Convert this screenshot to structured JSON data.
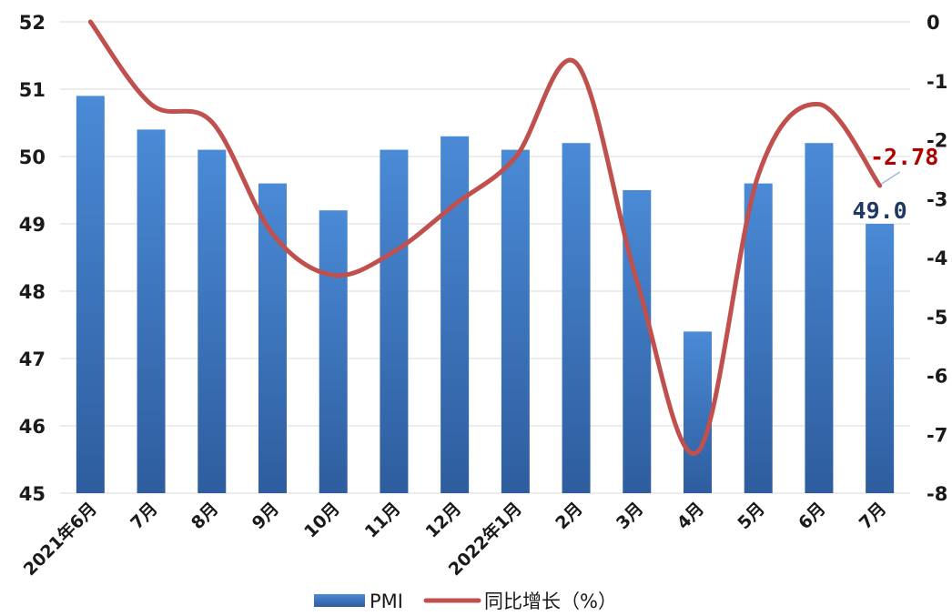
{
  "chart_data": {
    "type": "bar",
    "categories": [
      "2021年6月",
      "7月",
      "8月",
      "9月",
      "10月",
      "11月",
      "12月",
      "2022年1月",
      "2月",
      "3月",
      "4月",
      "5月",
      "6月",
      "7月"
    ],
    "series": [
      {
        "name": "PMI",
        "type": "bar",
        "axis": "left",
        "values": [
          50.9,
          50.4,
          50.1,
          49.6,
          49.2,
          50.1,
          50.3,
          50.1,
          50.2,
          49.5,
          47.4,
          49.6,
          50.2,
          49.0
        ],
        "color": "#3a78c3"
      },
      {
        "name": "同比增长（%）",
        "type": "line",
        "axis": "right",
        "values": [
          0,
          -1.4,
          -1.7,
          -3.6,
          -4.3,
          -3.9,
          -3.1,
          -2.3,
          -0.7,
          -4.4,
          -7.3,
          -2.6,
          -1.4,
          -2.78
        ],
        "color": "#c0504d"
      }
    ],
    "left_axis": {
      "ylim": [
        45,
        52
      ],
      "ticks": [
        "45",
        "46",
        "47",
        "48",
        "49",
        "50",
        "51",
        "52"
      ]
    },
    "right_axis": {
      "ylim": [
        -8,
        0
      ],
      "ticks": [
        "-8",
        "-7",
        "-6",
        "-5",
        "-4",
        "-3",
        "-2",
        "-1",
        "0"
      ]
    },
    "grid": true,
    "legend": "bottom",
    "annotations": {
      "line_last": {
        "text": "-2.78",
        "color": "#b00000"
      },
      "bar_last": {
        "text": "49.0",
        "color": "#1f3864"
      }
    }
  }
}
